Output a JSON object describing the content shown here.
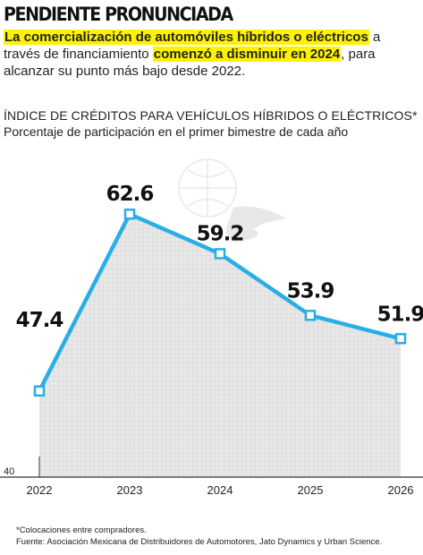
{
  "headline": "PENDIENTE PRONUNCIADA",
  "lead": {
    "part1": "La comercialización de automóviles híbridos o eléctricos",
    "part2": " a través de financiamiento ",
    "part3": "comenzó a disminuir en 2024",
    "part4": ", para alcanzar su punto más bajo desde 2022."
  },
  "colors": {
    "line": "#29aee6",
    "fill": "#e6e6e6",
    "highlight": "#fff200",
    "marker_fill": "#ffffff"
  },
  "chart_data": {
    "type": "area",
    "title": "ÍNDICE DE CRÉDITOS PARA VEHÍCULOS HÍBRIDOS O ELÉCTRICOS*",
    "subtitle": "Porcentaje de participación en el primer bimestre de cada año",
    "x": [
      "2022",
      "2023",
      "2024",
      "2025",
      "2026"
    ],
    "values": [
      47.4,
      62.6,
      59.2,
      53.9,
      51.9
    ],
    "value_labels": [
      "47.4",
      "62.6",
      "59.2",
      "53.9",
      "51.9"
    ],
    "y_tick_label": "40",
    "ylim": [
      40,
      65
    ],
    "grid": true,
    "legend": "none"
  },
  "footnotes": {
    "note": "*Colocaciones entre compradores.",
    "source": "Fuente: Asociación Mexicana de Distribuidores de Automotores, Jato Dynamics y Urban Science."
  }
}
